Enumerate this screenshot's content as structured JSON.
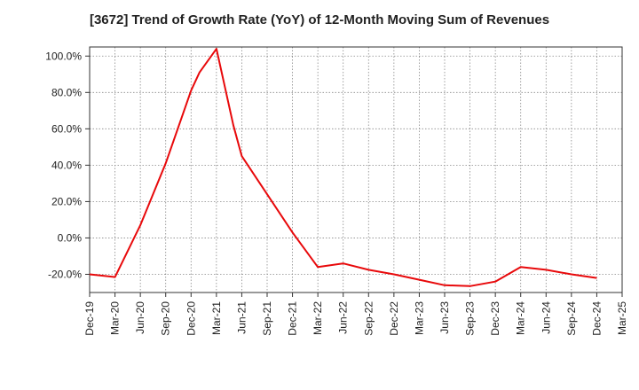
{
  "chart_data": {
    "type": "line",
    "title": "[3672]  Trend of Growth Rate (YoY) of 12-Month Moving Sum of Revenues",
    "xlabel": "",
    "ylabel": "",
    "x_ticks": [
      "Dec-19",
      "Mar-20",
      "Jun-20",
      "Sep-20",
      "Dec-20",
      "Mar-21",
      "Jun-21",
      "Sep-21",
      "Dec-21",
      "Mar-22",
      "Jun-22",
      "Sep-22",
      "Dec-22",
      "Mar-23",
      "Jun-23",
      "Sep-23",
      "Dec-23",
      "Mar-24",
      "Jun-24",
      "Sep-24",
      "Dec-24",
      "Mar-25"
    ],
    "y_ticks": [
      100,
      80,
      60,
      40,
      20,
      0,
      -20
    ],
    "y_tick_labels": [
      "100.0%",
      "80.0%",
      "60.0%",
      "40.0%",
      "20.0%",
      "0.0%",
      "-20.0%"
    ],
    "ylim": [
      -30,
      105
    ],
    "grid": true,
    "series": [
      {
        "color": "#e8090b",
        "x": [
          "Dec-19",
          "Mar-20",
          "Jun-20",
          "Sep-20",
          "Dec-20",
          "Jan-21",
          "Mar-21",
          "May-21",
          "Jun-21",
          "Sep-21",
          "Dec-21",
          "Mar-22",
          "Jun-22",
          "Sep-22",
          "Dec-22",
          "Mar-23",
          "Jun-23",
          "Sep-23",
          "Dec-23",
          "Mar-24",
          "Jun-24",
          "Sep-24",
          "Dec-24"
        ],
        "values": [
          -20,
          -21.5,
          7,
          41,
          81,
          91,
          104,
          62,
          45,
          24,
          3,
          -16,
          -14,
          -17.5,
          -20,
          -23,
          -26,
          -26.5,
          -24,
          -16,
          -17.5,
          -20,
          -22
        ]
      }
    ]
  }
}
